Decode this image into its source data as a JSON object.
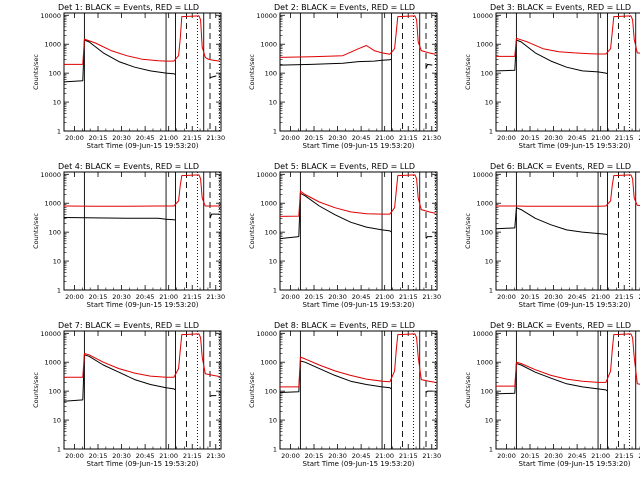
{
  "figure": {
    "axis_color": "#000000",
    "events_color": "#000000",
    "lld_color": "#e00000"
  },
  "chart_data": [
    {
      "type": "line",
      "title": "Det 1: BLACK = Events, RED = LLD",
      "xlabel": "Start Time (09-Jun-15 19:53:20)",
      "ylabel": "Counts/sec",
      "x_ticks": [
        "20:00",
        "20:15",
        "20:30",
        "20:45",
        "21:00",
        "21:15",
        "21:30"
      ],
      "y_ticks": [
        "1",
        "10",
        "100",
        "1000",
        "10000"
      ],
      "y_scale": "log",
      "ylim": [
        1,
        12000
      ],
      "xlim_minutes": [
        0,
        100
      ],
      "vlines": {
        "solid": [
          13,
          65,
          71,
          89
        ],
        "dashed": [
          78,
          93
        ],
        "dotted": [
          85,
          99
        ]
      },
      "series": [
        {
          "color": "#000000",
          "x": [
            0,
            12,
            13,
            16,
            25,
            35,
            45,
            55,
            65,
            70,
            71,
            72,
            73,
            74,
            86,
            87,
            88,
            89,
            90,
            92,
            93,
            97
          ],
          "y": [
            50,
            55,
            1400,
            1200,
            500,
            250,
            160,
            120,
            100,
            95,
            90,
            null,
            null,
            null,
            null,
            null,
            null,
            null,
            null,
            null,
            70,
            80
          ]
        },
        {
          "color": "#e00000",
          "x": [
            0,
            12,
            13,
            20,
            30,
            40,
            50,
            60,
            65,
            70,
            73,
            74,
            75,
            86,
            87,
            88,
            90,
            92,
            95,
            99
          ],
          "y": [
            200,
            200,
            1500,
            1100,
            600,
            400,
            300,
            270,
            260,
            260,
            400,
            1500,
            9000,
            9500,
            7000,
            800,
            350,
            300,
            280,
            260
          ]
        }
      ]
    },
    {
      "type": "line",
      "title": "Det 2: BLACK = Events, RED = LLD",
      "xlabel": "Start Time (09-Jun-15 19:53:20)",
      "ylabel": "Counts/sec",
      "x_ticks": [
        "20:00",
        "20:15",
        "20:30",
        "20:45",
        "21:00",
        "21:15",
        "21:30"
      ],
      "y_ticks": [
        "1",
        "10",
        "100",
        "1000",
        "10000"
      ],
      "y_scale": "log",
      "ylim": [
        1,
        12000
      ],
      "xlim_minutes": [
        0,
        100
      ],
      "vlines": {
        "solid": [
          13,
          65,
          71,
          89
        ],
        "dashed": [
          78,
          93
        ],
        "dotted": [
          85,
          99
        ]
      },
      "series": [
        {
          "color": "#000000",
          "x": [
            0,
            20,
            40,
            50,
            60,
            65,
            70,
            71,
            72,
            92,
            93,
            94,
            97
          ],
          "y": [
            190,
            200,
            220,
            250,
            260,
            280,
            290,
            300,
            null,
            null,
            150,
            200,
            190
          ]
        },
        {
          "color": "#e00000",
          "x": [
            0,
            20,
            40,
            50,
            55,
            60,
            65,
            70,
            73,
            74,
            75,
            86,
            87,
            88,
            90,
            95,
            99
          ],
          "y": [
            350,
            370,
            400,
            700,
            900,
            600,
            500,
            450,
            700,
            2500,
            9000,
            9500,
            7000,
            1200,
            600,
            500,
            450
          ]
        }
      ]
    },
    {
      "type": "line",
      "title": "Det 3: BLACK = Events, RED = LLD",
      "xlabel": "Start Time (09-Jun-15 19:53:20)",
      "ylabel": "Counts/sec",
      "x_ticks": [
        "20:00",
        "20:15",
        "20:30",
        "20:45",
        "21:00",
        "21:15",
        "21:30"
      ],
      "y_ticks": [
        "1",
        "10",
        "100",
        "1000",
        "10000"
      ],
      "y_scale": "log",
      "ylim": [
        1,
        12000
      ],
      "xlim_minutes": [
        0,
        100
      ],
      "vlines": {
        "solid": [
          13,
          65,
          71,
          89
        ],
        "dashed": [
          78,
          93
        ],
        "dotted": [
          85,
          99
        ]
      },
      "series": [
        {
          "color": "#000000",
          "x": [
            0,
            12,
            13,
            16,
            25,
            35,
            45,
            55,
            65,
            70,
            71,
            72,
            92,
            93,
            94,
            97
          ],
          "y": [
            120,
            125,
            1400,
            1200,
            500,
            260,
            160,
            120,
            110,
            100,
            95,
            null,
            null,
            55,
            60,
            60
          ]
        },
        {
          "color": "#e00000",
          "x": [
            0,
            12,
            13,
            20,
            30,
            40,
            50,
            60,
            65,
            70,
            73,
            74,
            75,
            86,
            87,
            88,
            90,
            95,
            99
          ],
          "y": [
            380,
            380,
            1600,
            1200,
            700,
            550,
            500,
            470,
            460,
            460,
            700,
            2500,
            9000,
            9500,
            7000,
            1500,
            500,
            480,
            450
          ]
        }
      ]
    },
    {
      "type": "line",
      "title": "Det 4: BLACK = Events, RED = LLD",
      "xlabel": "Start Time (09-Jun-15 19:53:20)",
      "ylabel": "Counts/sec",
      "x_ticks": [
        "20:00",
        "20:15",
        "20:30",
        "20:45",
        "21:00",
        "21:15",
        "21:30"
      ],
      "y_ticks": [
        "1",
        "10",
        "100",
        "1000",
        "10000"
      ],
      "y_scale": "log",
      "ylim": [
        1,
        12000
      ],
      "xlim_minutes": [
        0,
        100
      ],
      "vlines": {
        "solid": [
          13,
          65,
          71,
          89
        ],
        "dashed": [
          78,
          93
        ],
        "dotted": [
          85,
          99
        ]
      },
      "series": [
        {
          "color": "#000000",
          "x": [
            0,
            20,
            40,
            60,
            65,
            70,
            71,
            72,
            92,
            93,
            94,
            99
          ],
          "y": [
            320,
            310,
            300,
            300,
            280,
            270,
            260,
            null,
            null,
            300,
            420,
            420
          ]
        },
        {
          "color": "#e00000",
          "x": [
            0,
            20,
            40,
            60,
            65,
            70,
            73,
            74,
            75,
            86,
            87,
            88,
            90,
            95,
            99
          ],
          "y": [
            800,
            780,
            780,
            800,
            800,
            800,
            1200,
            4000,
            9000,
            9500,
            7000,
            1500,
            800,
            800,
            800
          ]
        }
      ]
    },
    {
      "type": "line",
      "title": "Det 5: BLACK = Events, RED = LLD",
      "xlabel": "Start Time (09-Jun-15 19:53:20)",
      "ylabel": "Counts/sec",
      "x_ticks": [
        "20:00",
        "20:15",
        "20:30",
        "20:45",
        "21:00",
        "21:15",
        "21:30"
      ],
      "y_ticks": [
        "1",
        "10",
        "100",
        "1000",
        "10000"
      ],
      "y_scale": "log",
      "ylim": [
        1,
        12000
      ],
      "xlim_minutes": [
        0,
        100
      ],
      "vlines": {
        "solid": [
          13,
          65,
          71,
          89
        ],
        "dashed": [
          78,
          93
        ],
        "dotted": [
          85,
          99
        ]
      },
      "series": [
        {
          "color": "#000000",
          "x": [
            0,
            12,
            13,
            16,
            25,
            35,
            45,
            55,
            65,
            70,
            71,
            72,
            92,
            93,
            94,
            97
          ],
          "y": [
            60,
            70,
            2200,
            1800,
            800,
            400,
            220,
            150,
            120,
            110,
            100,
            null,
            null,
            60,
            70,
            70
          ]
        },
        {
          "color": "#e00000",
          "x": [
            0,
            12,
            13,
            16,
            25,
            35,
            45,
            55,
            65,
            70,
            73,
            74,
            75,
            86,
            87,
            88,
            90,
            95,
            99
          ],
          "y": [
            350,
            360,
            2600,
            2000,
            1100,
            700,
            500,
            430,
            420,
            420,
            700,
            2500,
            9000,
            9500,
            7000,
            1500,
            600,
            500,
            450
          ]
        }
      ]
    },
    {
      "type": "line",
      "title": "Det 6: BLACK = Events, RED = LLD",
      "xlabel": "Start Time (09-Jun-15 19:53:20)",
      "ylabel": "Counts/sec",
      "x_ticks": [
        "20:00",
        "20:15",
        "20:30",
        "20:45",
        "21:00",
        "21:15",
        "21:30"
      ],
      "y_ticks": [
        "1",
        "10",
        "100",
        "1000",
        "10000"
      ],
      "y_scale": "log",
      "ylim": [
        1,
        12000
      ],
      "xlim_minutes": [
        0,
        100
      ],
      "vlines": {
        "solid": [
          13,
          65,
          71,
          89
        ],
        "dashed": [
          78,
          93
        ],
        "dotted": [
          85,
          99
        ]
      },
      "series": [
        {
          "color": "#000000",
          "x": [
            0,
            12,
            13,
            16,
            25,
            35,
            45,
            55,
            65,
            70,
            71,
            72,
            92,
            93,
            94,
            97
          ],
          "y": [
            130,
            140,
            700,
            600,
            300,
            180,
            120,
            100,
            90,
            85,
            80,
            null,
            null,
            40,
            50,
            50
          ]
        },
        {
          "color": "#e00000",
          "x": [
            0,
            12,
            13,
            20,
            30,
            40,
            50,
            60,
            65,
            70,
            73,
            74,
            75,
            86,
            87,
            88,
            90,
            95,
            99
          ],
          "y": [
            800,
            800,
            800,
            790,
            780,
            780,
            780,
            780,
            790,
            800,
            1200,
            4000,
            9000,
            9500,
            7000,
            1500,
            850,
            800,
            800
          ]
        }
      ]
    },
    {
      "type": "line",
      "title": "Det 7: BLACK = Events, RED = LLD",
      "xlabel": "Start Time (09-Jun-15 19:53:20)",
      "ylabel": "Counts/sec",
      "x_ticks": [
        "20:00",
        "20:15",
        "20:30",
        "20:45",
        "21:00",
        "21:15",
        "21:30"
      ],
      "y_ticks": [
        "1",
        "10",
        "100",
        "1000",
        "10000"
      ],
      "y_scale": "log",
      "ylim": [
        1,
        12000
      ],
      "xlim_minutes": [
        0,
        100
      ],
      "vlines": {
        "solid": [
          13,
          65,
          71,
          89
        ],
        "dashed": [
          78,
          93
        ],
        "dotted": [
          85,
          99
        ]
      },
      "series": [
        {
          "color": "#000000",
          "x": [
            0,
            12,
            13,
            16,
            25,
            35,
            45,
            55,
            65,
            70,
            71,
            72,
            92,
            93,
            94,
            97
          ],
          "y": [
            45,
            50,
            1800,
            1600,
            800,
            450,
            250,
            170,
            130,
            120,
            110,
            null,
            null,
            65,
            70,
            70
          ]
        },
        {
          "color": "#e00000",
          "x": [
            0,
            12,
            13,
            16,
            25,
            35,
            45,
            55,
            65,
            70,
            73,
            74,
            75,
            86,
            87,
            88,
            90,
            95,
            99
          ],
          "y": [
            300,
            300,
            2000,
            1800,
            1000,
            600,
            420,
            330,
            300,
            300,
            600,
            2500,
            9000,
            9500,
            7000,
            1500,
            400,
            350,
            320
          ]
        }
      ]
    },
    {
      "type": "line",
      "title": "Det 8: BLACK = Events, RED = LLD",
      "xlabel": "Start Time (09-Jun-15 19:53:20)",
      "ylabel": "Counts/sec",
      "x_ticks": [
        "20:00",
        "20:15",
        "20:30",
        "20:45",
        "21:00",
        "21:15",
        "21:30"
      ],
      "y_ticks": [
        "1",
        "10",
        "100",
        "1000",
        "10000"
      ],
      "y_scale": "log",
      "ylim": [
        1,
        12000
      ],
      "xlim_minutes": [
        0,
        100
      ],
      "vlines": {
        "solid": [
          13,
          65,
          71,
          89
        ],
        "dashed": [
          78,
          93
        ],
        "dotted": [
          85,
          99
        ]
      },
      "series": [
        {
          "color": "#000000",
          "x": [
            0,
            12,
            13,
            16,
            25,
            35,
            45,
            55,
            65,
            70,
            71,
            72,
            92,
            93,
            94,
            97
          ],
          "y": [
            90,
            95,
            1100,
            1000,
            600,
            350,
            220,
            170,
            140,
            130,
            120,
            null,
            null,
            90,
            100,
            100
          ]
        },
        {
          "color": "#e00000",
          "x": [
            0,
            12,
            13,
            16,
            25,
            35,
            45,
            55,
            65,
            70,
            73,
            74,
            75,
            86,
            87,
            88,
            90,
            95,
            99
          ],
          "y": [
            140,
            140,
            1500,
            1300,
            800,
            500,
            350,
            260,
            220,
            210,
            500,
            2500,
            9000,
            9500,
            7000,
            1500,
            250,
            220,
            200
          ]
        }
      ]
    },
    {
      "type": "line",
      "title": "Det 9: BLACK = Events, RED = LLD",
      "xlabel": "Start Time (09-Jun-15 19:53:20)",
      "ylabel": "Counts/sec",
      "x_ticks": [
        "20:00",
        "20:15",
        "20:30",
        "20:45",
        "21:00",
        "21:15",
        "21:30"
      ],
      "y_ticks": [
        "1",
        "10",
        "100",
        "1000",
        "10000"
      ],
      "y_scale": "log",
      "ylim": [
        1,
        12000
      ],
      "xlim_minutes": [
        0,
        100
      ],
      "vlines": {
        "solid": [
          13,
          65,
          71,
          89
        ],
        "dashed": [
          78,
          93
        ],
        "dotted": [
          85,
          99
        ]
      },
      "series": [
        {
          "color": "#000000",
          "x": [
            0,
            12,
            13,
            16,
            25,
            35,
            45,
            55,
            65,
            70,
            71,
            72,
            92,
            93,
            94,
            97
          ],
          "y": [
            80,
            85,
            900,
            800,
            450,
            280,
            180,
            140,
            120,
            110,
            100,
            null,
            null,
            70,
            80,
            80
          ]
        },
        {
          "color": "#e00000",
          "x": [
            0,
            12,
            13,
            16,
            25,
            35,
            45,
            55,
            65,
            70,
            73,
            74,
            75,
            86,
            87,
            88,
            90,
            95,
            99
          ],
          "y": [
            150,
            150,
            1000,
            900,
            550,
            350,
            260,
            220,
            200,
            200,
            500,
            2500,
            9000,
            9500,
            7000,
            1500,
            180,
            160,
            150
          ]
        }
      ]
    }
  ]
}
